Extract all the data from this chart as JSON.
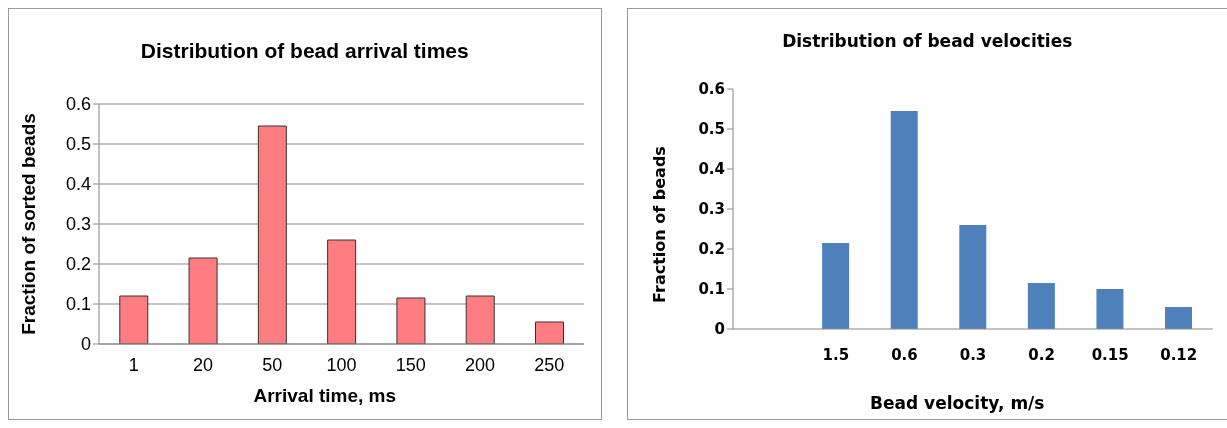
{
  "chart_data": [
    {
      "type": "bar",
      "title": "Distribution of bead arrival times",
      "xlabel": "Arrival time, ms",
      "ylabel": "Fraction of sorted beads",
      "categories": [
        "1",
        "20",
        "50",
        "100",
        "150",
        "200",
        "250"
      ],
      "values": [
        0.12,
        0.215,
        0.545,
        0.26,
        0.115,
        0.12,
        0.055
      ],
      "color": "#ff7c80",
      "ylim": [
        0,
        0.6
      ],
      "yticks": [
        0,
        0.1,
        0.2,
        0.3,
        0.4,
        0.5,
        0.6
      ],
      "grid": "y"
    },
    {
      "type": "bar",
      "title": "Distribution of bead velocities",
      "xlabel": "Bead velocity, m/s",
      "ylabel": "Fraction of beads",
      "categories": [
        null,
        "1.5",
        "0.6",
        "0.3",
        "0.2",
        "0.15",
        "0.12"
      ],
      "values": [
        null,
        0.215,
        0.545,
        0.26,
        0.115,
        0.1,
        0.055
      ],
      "color": "#4f81bd",
      "ylim": [
        0,
        0.6
      ],
      "yticks": [
        0,
        0.1,
        0.2,
        0.3,
        0.4,
        0.5,
        0.6
      ]
    }
  ]
}
